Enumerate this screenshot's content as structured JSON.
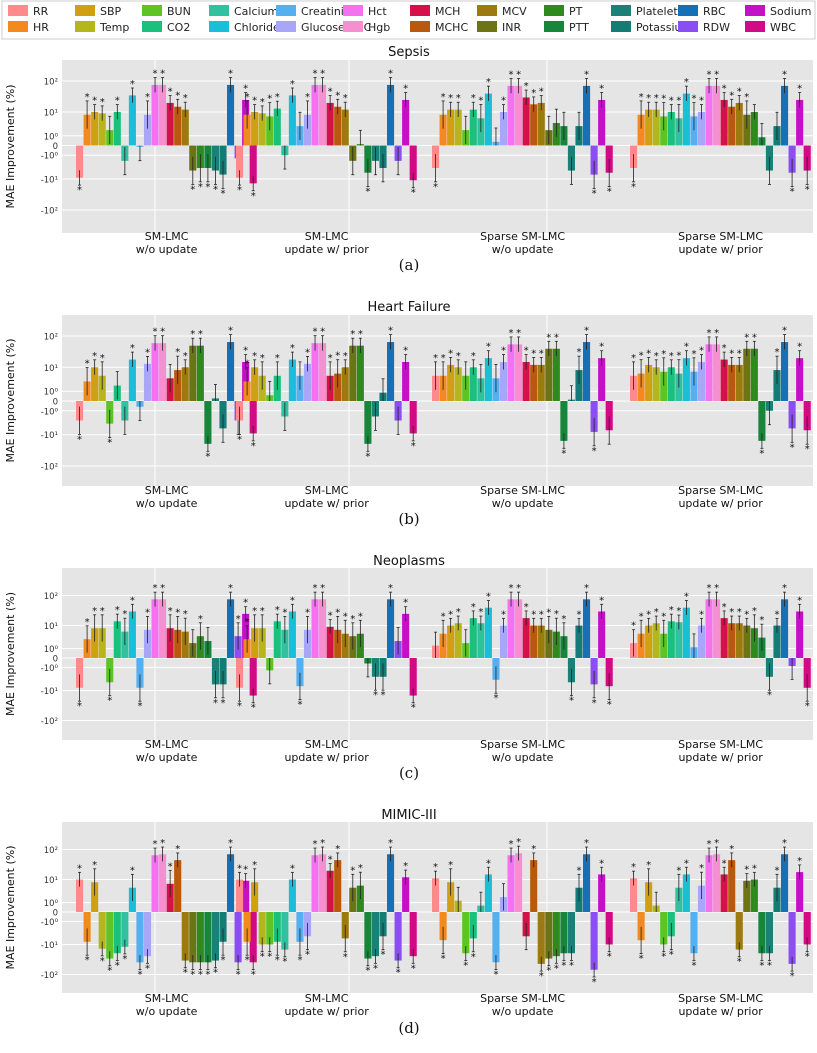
{
  "legend": [
    {
      "name": "RR",
      "color": "#fe8a8c"
    },
    {
      "name": "SBP",
      "color": "#d0a012"
    },
    {
      "name": "BUN",
      "color": "#5dc423"
    },
    {
      "name": "Calcium",
      "color": "#30c1a0"
    },
    {
      "name": "Creatinine",
      "color": "#55b0f2"
    },
    {
      "name": "Hct",
      "color": "#f472ef"
    },
    {
      "name": "MCH",
      "color": "#d5104a"
    },
    {
      "name": "MCV",
      "color": "#9d7a10"
    },
    {
      "name": "PT",
      "color": "#2f8a1d"
    },
    {
      "name": "Platelet",
      "color": "#1b8078"
    },
    {
      "name": "RBC",
      "color": "#1670b8"
    },
    {
      "name": "Sodium",
      "color": "#c511c5"
    },
    {
      "name": "HR",
      "color": "#f38a1e"
    },
    {
      "name": "Temp",
      "color": "#b4b61b"
    },
    {
      "name": "CO2",
      "color": "#1cc07d"
    },
    {
      "name": "Chloride",
      "color": "#19bfd9"
    },
    {
      "name": "Glucose POC",
      "color": "#a8a6f8"
    },
    {
      "name": "Hgb",
      "color": "#f58fd0"
    },
    {
      "name": "MCHC",
      "color": "#b8590f"
    },
    {
      "name": "INR",
      "color": "#6d7413"
    },
    {
      "name": "PTT",
      "color": "#16863a"
    },
    {
      "name": "Potassium",
      "color": "#137c74"
    },
    {
      "name": "RDW",
      "color": "#8b4ef2"
    },
    {
      "name": "WBC",
      "color": "#d10a85"
    }
  ],
  "ylabel": "MAE Improvement (%)",
  "tick_labels": {
    "p100": "10²",
    "p10": "10¹",
    "p1": "10⁰",
    "zero": "0",
    "n1": "-10⁰",
    "n10": "-10¹",
    "n100": "-10²"
  },
  "star": "*",
  "chart_data": [
    {
      "type": "bar",
      "yscale": "symlog",
      "title": "Sepsis",
      "caption": "(a)",
      "groups": [
        "SM-LMC|w/o update",
        "SM-LMC|update w/ prior",
        "Sparse SM-LMC|w/o update",
        "Sparse SM-LMC|update w/ prior"
      ],
      "series": [
        "RR",
        "HR",
        "SBP",
        "Temp",
        "BUN",
        "CO2",
        "Calcium",
        "Chloride",
        "Creatinine",
        "Glucose POC",
        "Hct",
        "Hgb",
        "MCH",
        "MCHC",
        "MCV",
        "INR",
        "PT",
        "PTT",
        "Platelet",
        "Potassium",
        "RBC",
        "RDW",
        "Sodium",
        "WBC"
      ],
      "values": [
        [
          -9,
          8,
          10,
          9,
          2,
          10,
          -2,
          35,
          -0.1,
          8,
          75,
          75,
          20,
          15,
          12,
          -5,
          -4,
          -4,
          -5,
          -7,
          75,
          -1.5,
          25,
          -14
        ],
        [
          -9,
          8,
          10,
          9,
          7,
          13,
          -1,
          35,
          3,
          8,
          75,
          75,
          20,
          15,
          12,
          -2,
          0.1,
          -6,
          -2,
          -4,
          75,
          -2,
          25,
          -11
        ],
        [
          -4,
          8,
          12,
          12,
          2,
          12,
          6,
          40,
          0.3,
          10,
          70,
          70,
          30,
          18,
          20,
          2,
          4,
          3,
          -5,
          3,
          70,
          -7,
          25,
          -6
        ],
        [
          -4,
          8,
          12,
          12,
          7,
          10,
          6,
          40,
          7,
          10,
          70,
          70,
          25,
          15,
          20,
          8,
          10,
          0.8,
          -5,
          3,
          70,
          -6,
          25,
          -5
        ]
      ],
      "stars": [
        [
          1,
          1,
          1,
          1,
          0,
          1,
          0,
          1,
          0,
          1,
          1,
          1,
          1,
          1,
          1,
          1,
          1,
          1,
          1,
          1,
          1,
          0,
          1,
          1
        ],
        [
          1,
          1,
          1,
          1,
          1,
          1,
          0,
          1,
          0,
          1,
          1,
          1,
          1,
          1,
          1,
          0,
          0,
          1,
          0,
          0,
          1,
          0,
          1,
          1
        ],
        [
          1,
          1,
          1,
          1,
          0,
          1,
          1,
          1,
          0,
          1,
          1,
          1,
          1,
          1,
          1,
          0,
          0,
          0,
          0,
          0,
          1,
          1,
          1,
          1
        ],
        [
          1,
          1,
          1,
          1,
          1,
          1,
          1,
          1,
          1,
          1,
          1,
          1,
          1,
          1,
          1,
          1,
          0,
          0,
          0,
          0,
          1,
          1,
          1,
          1
        ]
      ]
    },
    {
      "type": "bar",
      "yscale": "symlog",
      "title": "Heart Failure",
      "caption": "(b)",
      "groups": [
        "SM-LMC|w/o update",
        "SM-LMC|update w/ prior",
        "Sparse SM-LMC|w/o update",
        "Sparse SM-LMC|update w/ prior"
      ],
      "series": [
        "RR",
        "HR",
        "SBP",
        "Temp",
        "BUN",
        "CO2",
        "Calcium",
        "Chloride",
        "Creatinine",
        "Glucose POC",
        "Hct",
        "Hgb",
        "MCH",
        "MCHC",
        "MCV",
        "INR",
        "PT",
        "PTT",
        "Platelet",
        "Potassium",
        "RBC",
        "RDW",
        "Sodium",
        "WBC"
      ],
      "values": [
        [
          -3,
          3,
          10,
          5,
          -4,
          2,
          -3,
          18,
          -0.5,
          13,
          60,
          60,
          4,
          8,
          10,
          50,
          50,
          -20,
          0.2,
          -6,
          65,
          -3,
          15,
          -9
        ],
        [
          -3,
          3,
          10,
          5,
          0.5,
          5,
          -2,
          18,
          5,
          13,
          60,
          60,
          5,
          6,
          10,
          50,
          50,
          -20,
          -2,
          0.8,
          65,
          -3,
          15,
          -9
        ],
        [
          5,
          5,
          12,
          10,
          5,
          10,
          4,
          20,
          4,
          15,
          55,
          55,
          15,
          12,
          12,
          40,
          40,
          -16,
          0.1,
          8,
          65,
          -8,
          20,
          -7
        ],
        [
          5,
          6,
          12,
          10,
          7,
          10,
          6,
          20,
          7,
          15,
          55,
          55,
          18,
          12,
          12,
          40,
          40,
          -16,
          -1,
          8,
          65,
          -6,
          20,
          -7
        ]
      ],
      "stars": [
        [
          1,
          1,
          1,
          1,
          1,
          0,
          0,
          1,
          0,
          1,
          1,
          1,
          0,
          1,
          1,
          1,
          1,
          1,
          0,
          0,
          1,
          0,
          1,
          1
        ],
        [
          1,
          1,
          1,
          1,
          0,
          1,
          0,
          1,
          0,
          1,
          1,
          1,
          1,
          1,
          1,
          1,
          1,
          1,
          0,
          0,
          1,
          0,
          1,
          1
        ],
        [
          1,
          1,
          1,
          1,
          0,
          1,
          0,
          1,
          0,
          1,
          1,
          1,
          1,
          1,
          1,
          1,
          1,
          1,
          0,
          1,
          1,
          1,
          1,
          0
        ],
        [
          1,
          1,
          1,
          1,
          1,
          1,
          1,
          1,
          1,
          1,
          1,
          1,
          1,
          1,
          1,
          1,
          1,
          1,
          0,
          1,
          1,
          1,
          1,
          1
        ]
      ]
    },
    {
      "type": "bar",
      "yscale": "symlog",
      "title": "Neoplasms",
      "caption": "(c)",
      "groups": [
        "SM-LMC|w/o update",
        "SM-LMC|update w/ prior",
        "Sparse SM-LMC|w/o update",
        "Sparse SM-LMC|update w/ prior"
      ],
      "series": [
        "RR",
        "HR",
        "SBP",
        "Temp",
        "BUN",
        "CO2",
        "Calcium",
        "Chloride",
        "Creatinine",
        "Glucose POC",
        "Hct",
        "Hgb",
        "MCH",
        "MCHC",
        "MCV",
        "INR",
        "PT",
        "PTT",
        "Platelet",
        "Potassium",
        "RBC",
        "RDW",
        "Sodium",
        "WBC"
      ],
      "values": [
        [
          -8,
          3,
          8,
          8,
          -5,
          14,
          6,
          30,
          -8,
          7,
          75,
          75,
          8,
          7,
          6,
          2,
          4,
          2.5,
          -6,
          -6,
          75,
          4,
          25,
          -15
        ],
        [
          -8,
          3,
          8,
          8,
          -1.5,
          14,
          7,
          30,
          -7,
          7,
          75,
          75,
          9,
          7,
          5,
          4,
          5,
          -0.5,
          -3,
          -3,
          75,
          2.5,
          25,
          -15
        ],
        [
          1.5,
          5,
          10,
          12,
          2,
          18,
          12,
          40,
          -4,
          10,
          75,
          75,
          18,
          10,
          10,
          7,
          6,
          4,
          -5,
          10,
          75,
          -6,
          30,
          -7
        ],
        [
          2,
          5,
          10,
          12,
          5,
          14,
          13,
          40,
          1.2,
          10,
          75,
          75,
          18,
          12,
          12,
          10,
          8,
          3.5,
          -3,
          10,
          75,
          -0.8,
          30,
          -8
        ]
      ],
      "stars": [
        [
          1,
          1,
          1,
          1,
          1,
          1,
          1,
          1,
          1,
          1,
          1,
          1,
          1,
          1,
          1,
          0,
          1,
          0,
          1,
          1,
          1,
          1,
          1,
          1
        ],
        [
          1,
          1,
          1,
          1,
          0,
          1,
          1,
          1,
          1,
          1,
          1,
          1,
          1,
          1,
          1,
          1,
          1,
          0,
          1,
          1,
          1,
          0,
          1,
          1
        ],
        [
          0,
          1,
          1,
          1,
          0,
          1,
          1,
          1,
          1,
          1,
          1,
          1,
          1,
          1,
          1,
          1,
          1,
          1,
          1,
          1,
          1,
          1,
          1,
          1
        ],
        [
          1,
          1,
          1,
          1,
          1,
          1,
          1,
          1,
          0,
          1,
          1,
          1,
          1,
          1,
          1,
          1,
          1,
          1,
          1,
          1,
          1,
          0,
          1,
          1
        ]
      ]
    },
    {
      "type": "bar",
      "yscale": "symlog",
      "title": "MIMIC-III",
      "caption": "(d)",
      "groups": [
        "SM-LMC|w/o update",
        "SM-LMC|update w/ prior",
        "Sparse SM-LMC|w/o update",
        "Sparse SM-LMC|update w/ prior"
      ],
      "series": [
        "RR",
        "HR",
        "SBP",
        "Temp",
        "BUN",
        "CO2",
        "Calcium",
        "Chloride",
        "Creatinine",
        "Glucose POC",
        "Hct",
        "Hgb",
        "MCH",
        "MCHC",
        "MCV",
        "INR",
        "PT",
        "PTT",
        "Platelet",
        "Potassium",
        "RBC",
        "RDW",
        "Sodium",
        "WBC"
      ],
      "values": [
        [
          10,
          -8,
          8,
          -14,
          -30,
          -20,
          -12,
          5,
          -40,
          -25,
          65,
          70,
          7,
          45,
          -35,
          -40,
          -40,
          -40,
          -35,
          -8,
          70,
          -40,
          9,
          -40
        ],
        [
          10,
          -8,
          8,
          -10,
          -10,
          -8,
          -15,
          10,
          -8,
          -5,
          65,
          70,
          20,
          45,
          -6,
          5,
          6,
          -30,
          -25,
          -5,
          70,
          -35,
          12,
          -25
        ],
        [
          11,
          -7,
          8,
          1.3,
          -20,
          -6,
          0.6,
          15,
          -40,
          2,
          65,
          75,
          -5,
          45,
          -45,
          -30,
          -25,
          -20,
          -20,
          5,
          70,
          -70,
          15,
          -10
        ],
        [
          11,
          -7,
          8,
          0.6,
          -10,
          -5,
          5,
          15,
          -20,
          6,
          65,
          70,
          15,
          45,
          -15,
          9,
          10,
          -20,
          -20,
          5,
          70,
          -45,
          18,
          -10
        ]
      ],
      "stars": [
        [
          1,
          1,
          1,
          1,
          1,
          1,
          1,
          1,
          1,
          1,
          1,
          1,
          1,
          1,
          1,
          1,
          1,
          1,
          1,
          1,
          1,
          1,
          1,
          1
        ],
        [
          1,
          1,
          1,
          1,
          1,
          1,
          1,
          1,
          1,
          1,
          1,
          1,
          1,
          1,
          1,
          1,
          1,
          1,
          1,
          1,
          1,
          1,
          1,
          1
        ],
        [
          1,
          1,
          1,
          0,
          1,
          1,
          0,
          1,
          1,
          0,
          1,
          1,
          0,
          1,
          1,
          1,
          1,
          1,
          1,
          1,
          1,
          1,
          1,
          1
        ],
        [
          1,
          1,
          1,
          0,
          1,
          1,
          1,
          1,
          1,
          1,
          1,
          1,
          1,
          1,
          1,
          1,
          1,
          1,
          1,
          1,
          1,
          1,
          1,
          1
        ]
      ]
    }
  ]
}
